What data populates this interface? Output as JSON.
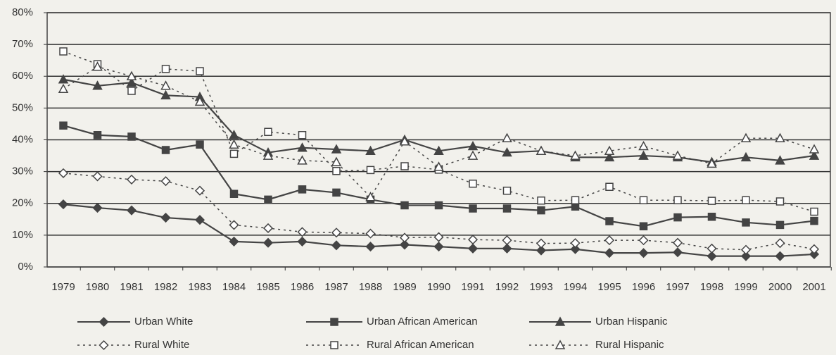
{
  "chart_data": {
    "type": "line",
    "categories": [
      "1979",
      "1980",
      "1981",
      "1982",
      "1983",
      "1984",
      "1985",
      "1986",
      "1987",
      "1988",
      "1989",
      "1990",
      "1991",
      "1992",
      "1993",
      "1994",
      "1995",
      "1996",
      "1997",
      "1998",
      "1999",
      "2000",
      "2001"
    ],
    "ylim": [
      0,
      80
    ],
    "yticks": [
      {
        "value": 0,
        "label": "0%"
      },
      {
        "value": 10,
        "label": "10%"
      },
      {
        "value": 20,
        "label": "20%"
      },
      {
        "value": 30,
        "label": "30%"
      },
      {
        "value": 40,
        "label": "40%"
      },
      {
        "value": 50,
        "label": "50%"
      },
      {
        "value": 60,
        "label": "60%"
      },
      {
        "value": 70,
        "label": "70%"
      },
      {
        "value": 80,
        "label": "80%"
      }
    ],
    "grid": true,
    "series": [
      {
        "name": "Urban White",
        "color": "#444444",
        "marker": "diamond",
        "filled": true,
        "dashed": false,
        "values": [
          19.7,
          18.6,
          17.8,
          15.5,
          14.8,
          8,
          7.6,
          8,
          6.8,
          6.4,
          7,
          6.4,
          5.8,
          5.8,
          5.2,
          5.6,
          4.4,
          4.4,
          4.6,
          3.4,
          3.4,
          3.4,
          4
        ]
      },
      {
        "name": "Urban African American",
        "color": "#444444",
        "marker": "square",
        "filled": true,
        "dashed": false,
        "values": [
          44.5,
          41.5,
          41,
          36.8,
          38.5,
          23,
          21.2,
          24.4,
          23.4,
          21.2,
          19.4,
          19.4,
          18.4,
          18.4,
          17.8,
          19,
          14.4,
          12.8,
          15.6,
          15.8,
          14,
          13.2,
          14.5
        ]
      },
      {
        "name": "Urban Hispanic",
        "color": "#444444",
        "marker": "triangle",
        "filled": true,
        "dashed": false,
        "values": [
          59,
          57,
          58,
          54,
          53.5,
          41.5,
          36,
          37.5,
          37,
          36.5,
          40,
          36.5,
          38,
          36,
          36.5,
          34.5,
          34.5,
          35,
          34.5,
          33,
          34.5,
          33.5,
          35
        ]
      },
      {
        "name": "Rural White",
        "color": "#444444",
        "marker": "diamond",
        "filled": false,
        "dashed": true,
        "values": [
          29.5,
          28.5,
          27.5,
          27,
          24,
          13.2,
          12.2,
          11,
          10.8,
          10.5,
          9.2,
          9.4,
          8.6,
          8.4,
          7.4,
          7.5,
          8.4,
          8.4,
          7.6,
          5.8,
          5.4,
          7.5,
          5.6
        ]
      },
      {
        "name": "Rural African American",
        "color": "#444444",
        "marker": "square",
        "filled": false,
        "dashed": true,
        "values": [
          67.8,
          63.8,
          55.4,
          62.3,
          61.6,
          35.6,
          42.5,
          41.5,
          30.2,
          30.5,
          31.7,
          30.6,
          26.2,
          24,
          20.9,
          21,
          25.2,
          21,
          21,
          20.8,
          21,
          20.6,
          17.4
        ]
      },
      {
        "name": "Rural Hispanic",
        "color": "#444444",
        "marker": "triangle",
        "filled": false,
        "dashed": true,
        "values": [
          56,
          63,
          60,
          57,
          52,
          38.5,
          35,
          33.5,
          33,
          22,
          39.5,
          31.5,
          35,
          40.5,
          36.5,
          35,
          36.5,
          38,
          35,
          32.5,
          40.5,
          40.5,
          37
        ]
      }
    ]
  }
}
